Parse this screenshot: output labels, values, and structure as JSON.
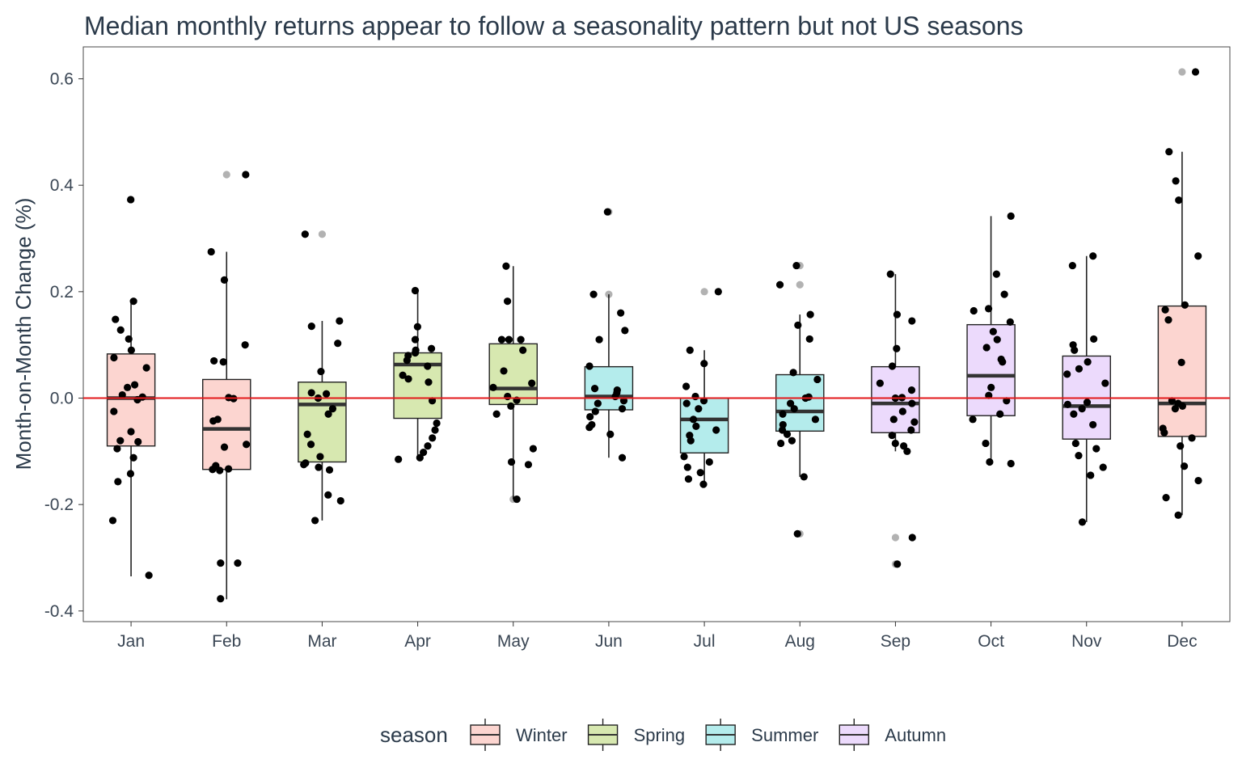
{
  "chart_data": {
    "type": "box",
    "title": "Median monthly returns appear to follow a seasonality pattern but not US seasons",
    "xlabel": "",
    "ylabel": "Month-on-Month Change (%)",
    "ylim": [
      -0.42,
      0.66
    ],
    "yticks": [
      -0.4,
      -0.2,
      0.0,
      0.2,
      0.4,
      0.6
    ],
    "ytick_labels": [
      "-0.4",
      "-0.2",
      "0.0",
      "0.2",
      "0.4",
      "0.6"
    ],
    "reference_line": {
      "y": 0.0,
      "color": "#e31a1c"
    },
    "grid": false,
    "legend": {
      "title": "season",
      "position": "bottom",
      "entries": [
        {
          "name": "Winter",
          "color": "#fcd5d0"
        },
        {
          "name": "Spring",
          "color": "#d7e8b0"
        },
        {
          "name": "Summer",
          "color": "#b4ecec"
        },
        {
          "name": "Autumn",
          "color": "#ecdafc"
        }
      ]
    },
    "categories": [
      "Jan",
      "Feb",
      "Mar",
      "Apr",
      "May",
      "Jun",
      "Jul",
      "Aug",
      "Sep",
      "Oct",
      "Nov",
      "Dec"
    ],
    "boxes": [
      {
        "month": "Jan",
        "season": "Winter",
        "whisker_low": -0.335,
        "q1": -0.09,
        "median": 0.0,
        "q3": 0.083,
        "whisker_high": 0.18,
        "points": [
          0.373,
          0.182,
          0.148,
          0.128,
          0.111,
          0.09,
          0.076,
          0.057,
          0.025,
          0.02,
          0.006,
          0.002,
          -0.003,
          -0.025,
          -0.063,
          -0.08,
          -0.082,
          -0.095,
          -0.112,
          -0.142,
          -0.157,
          -0.23,
          -0.333
        ]
      },
      {
        "month": "Feb",
        "season": "Winter",
        "whisker_low": -0.378,
        "q1": -0.134,
        "median": -0.058,
        "q3": 0.035,
        "whisker_high": 0.275,
        "points": [
          0.42,
          0.275,
          0.222,
          0.1,
          0.07,
          0.068,
          0.001,
          -0.001,
          -0.04,
          -0.043,
          -0.087,
          -0.092,
          -0.127,
          -0.133,
          -0.136,
          -0.134,
          -0.31,
          -0.31,
          -0.377
        ]
      },
      {
        "month": "Mar",
        "season": "Spring",
        "whisker_low": -0.23,
        "q1": -0.12,
        "median": -0.012,
        "q3": 0.03,
        "whisker_high": 0.145,
        "points": [
          0.308,
          0.145,
          0.135,
          0.103,
          0.05,
          0.01,
          0.008,
          0.0,
          -0.02,
          -0.03,
          -0.068,
          -0.087,
          -0.11,
          -0.122,
          -0.125,
          -0.13,
          -0.135,
          -0.182,
          -0.193,
          -0.23
        ]
      },
      {
        "month": "Apr",
        "season": "Spring",
        "whisker_low": -0.115,
        "q1": -0.038,
        "median": 0.063,
        "q3": 0.085,
        "whisker_high": 0.2,
        "points": [
          0.202,
          0.134,
          0.11,
          0.093,
          0.09,
          0.085,
          0.08,
          0.071,
          0.06,
          0.043,
          0.036,
          0.03,
          -0.005,
          -0.047,
          -0.06,
          -0.075,
          -0.09,
          -0.102,
          -0.112,
          -0.115
        ]
      },
      {
        "month": "May",
        "season": "Spring",
        "whisker_low": -0.19,
        "q1": -0.012,
        "median": 0.018,
        "q3": 0.102,
        "whisker_high": 0.248,
        "points": [
          0.248,
          0.182,
          0.11,
          0.11,
          0.11,
          0.09,
          0.051,
          0.028,
          0.02,
          0.003,
          -0.004,
          -0.015,
          -0.03,
          -0.095,
          -0.12,
          -0.125,
          -0.19
        ]
      },
      {
        "month": "Jun",
        "season": "Summer",
        "whisker_low": -0.112,
        "q1": -0.022,
        "median": 0.003,
        "q3": 0.059,
        "whisker_high": 0.195,
        "points": [
          0.35,
          0.195,
          0.16,
          0.127,
          0.11,
          0.06,
          0.018,
          0.015,
          0.01,
          0.003,
          -0.005,
          -0.01,
          -0.02,
          -0.025,
          -0.035,
          -0.05,
          -0.055,
          -0.068,
          -0.112
        ]
      },
      {
        "month": "Jul",
        "season": "Summer",
        "whisker_low": -0.163,
        "q1": -0.103,
        "median": -0.04,
        "q3": 0.0,
        "whisker_high": 0.09,
        "points": [
          0.2,
          0.09,
          0.065,
          0.022,
          0.003,
          -0.005,
          -0.01,
          -0.02,
          -0.04,
          -0.053,
          -0.06,
          -0.07,
          -0.08,
          -0.11,
          -0.12,
          -0.13,
          -0.14,
          -0.152,
          -0.162
        ]
      },
      {
        "month": "Aug",
        "season": "Summer",
        "whisker_low": -0.148,
        "q1": -0.062,
        "median": -0.025,
        "q3": 0.044,
        "whisker_high": 0.157,
        "points": [
          0.249,
          0.213,
          0.157,
          0.137,
          0.111,
          0.048,
          0.035,
          0.002,
          0.0,
          -0.01,
          -0.02,
          -0.03,
          -0.04,
          -0.05,
          -0.06,
          -0.068,
          -0.08,
          -0.085,
          -0.148,
          -0.255
        ]
      },
      {
        "month": "Sep",
        "season": "Autumn",
        "whisker_low": -0.1,
        "q1": -0.065,
        "median": -0.01,
        "q3": 0.059,
        "whisker_high": 0.233,
        "points": [
          0.233,
          0.157,
          0.145,
          0.093,
          0.06,
          0.028,
          0.015,
          0.001,
          0.0,
          -0.01,
          -0.025,
          -0.04,
          -0.045,
          -0.06,
          -0.07,
          -0.085,
          -0.09,
          -0.1,
          -0.262,
          -0.312
        ]
      },
      {
        "month": "Oct",
        "season": "Autumn",
        "whisker_low": -0.123,
        "q1": -0.033,
        "median": 0.042,
        "q3": 0.138,
        "whisker_high": 0.342,
        "points": [
          0.342,
          0.233,
          0.195,
          0.168,
          0.164,
          0.143,
          0.125,
          0.11,
          0.095,
          0.073,
          0.068,
          0.02,
          0.005,
          -0.005,
          -0.03,
          -0.04,
          -0.085,
          -0.12,
          -0.123
        ]
      },
      {
        "month": "Nov",
        "season": "Autumn",
        "whisker_low": -0.233,
        "q1": -0.077,
        "median": -0.015,
        "q3": 0.079,
        "whisker_high": 0.267,
        "points": [
          0.267,
          0.249,
          0.111,
          0.1,
          0.09,
          0.068,
          0.055,
          0.045,
          0.028,
          -0.008,
          -0.012,
          -0.02,
          -0.03,
          -0.05,
          -0.085,
          -0.095,
          -0.108,
          -0.13,
          -0.145,
          -0.233
        ]
      },
      {
        "month": "Dec",
        "season": "Winter",
        "whisker_low": -0.22,
        "q1": -0.072,
        "median": -0.01,
        "q3": 0.173,
        "whisker_high": 0.463,
        "points": [
          0.613,
          0.463,
          0.408,
          0.372,
          0.267,
          0.175,
          0.166,
          0.147,
          0.067,
          -0.005,
          -0.01,
          -0.015,
          -0.02,
          -0.057,
          -0.065,
          -0.075,
          -0.09,
          -0.128,
          -0.155,
          -0.187,
          -0.22
        ]
      }
    ]
  }
}
